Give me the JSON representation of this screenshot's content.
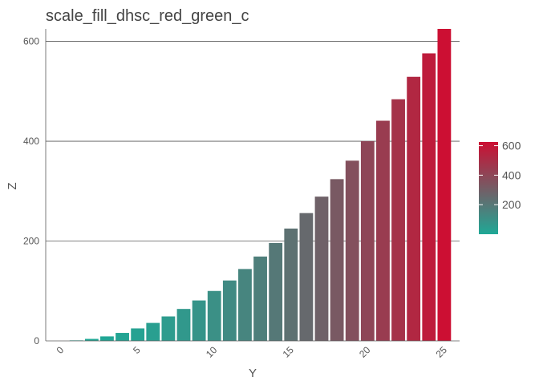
{
  "chart_data": {
    "type": "bar",
    "title": "scale_fill_dhsc_red_green_c",
    "xlabel": "Y",
    "ylabel": "Z",
    "x": [
      0,
      1,
      2,
      3,
      4,
      5,
      6,
      7,
      8,
      9,
      10,
      11,
      12,
      13,
      14,
      15,
      16,
      17,
      18,
      19,
      20,
      21,
      22,
      23,
      24,
      25
    ],
    "values": [
      0,
      1,
      4,
      9,
      16,
      25,
      36,
      49,
      64,
      81,
      100,
      121,
      144,
      169,
      196,
      225,
      256,
      289,
      324,
      361,
      400,
      441,
      484,
      529,
      576,
      625
    ],
    "xlim": [
      -1,
      26
    ],
    "ylim": [
      0,
      625
    ],
    "x_ticks": [
      0,
      5,
      10,
      15,
      20,
      25
    ],
    "y_ticks": [
      0,
      200,
      400,
      600
    ],
    "grid": "major horizontal",
    "legend": {
      "placement": "right",
      "ticks": [
        200,
        400,
        600
      ],
      "range": [
        0,
        625
      ],
      "low_color": "#1fa896",
      "high_color": "#cc0f33"
    }
  }
}
